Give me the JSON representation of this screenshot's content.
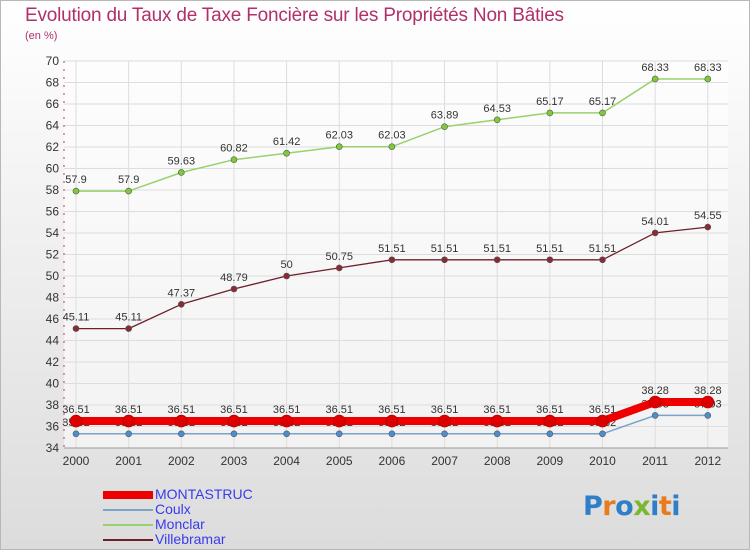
{
  "title": "Evolution du Taux de Taxe Foncière sur les Propriétés Non Bâties",
  "subtitle": "(en %)",
  "logo": {
    "chars": [
      "P",
      "r",
      "o",
      "x",
      "i",
      "t",
      "i"
    ],
    "colors": [
      "#2f7fc8",
      "#e87b1c",
      "#2f7fc8",
      "#7cb82f",
      "#2f7fc8",
      "#e87b1c",
      "#2f7fc8"
    ]
  },
  "chart_data": {
    "type": "line",
    "title": "Evolution du Taux de Taxe Foncière sur les Propriétés Non Bâties",
    "ylabel": "(en %)",
    "xlabel": "",
    "ylim": [
      34,
      70
    ],
    "yticks": [
      34,
      36,
      38,
      40,
      42,
      44,
      46,
      48,
      50,
      52,
      54,
      56,
      58,
      60,
      62,
      64,
      66,
      68,
      70
    ],
    "categories": [
      "2000",
      "2001",
      "2002",
      "2003",
      "2004",
      "2005",
      "2006",
      "2007",
      "2008",
      "2009",
      "2010",
      "2011",
      "2012"
    ],
    "legend_position": "bottom-left",
    "series": [
      {
        "name": "Villebramar",
        "color": "#6e1f2a",
        "markerFill": "#8a2a35",
        "width": 1.3,
        "values": [
          45.11,
          45.11,
          47.37,
          48.79,
          50,
          50.75,
          51.51,
          51.51,
          51.51,
          51.51,
          51.51,
          54.01,
          54.55
        ],
        "labels": [
          "45.11",
          "45.11",
          "47.37",
          "48.79",
          "50",
          "50.75",
          "51.51",
          "51.51",
          "51.51",
          "51.51",
          "51.51",
          "54.01",
          "54.55"
        ]
      },
      {
        "name": "Monclar",
        "color": "#99d16d",
        "markerFill": "#7ecb3a",
        "width": 1.5,
        "values": [
          57.9,
          57.9,
          59.63,
          60.82,
          61.42,
          62.03,
          62.03,
          63.89,
          64.53,
          65.17,
          65.17,
          68.33,
          68.33
        ],
        "labels": [
          "57.9",
          "57.9",
          "59.63",
          "60.82",
          "61.42",
          "62.03",
          "62.03",
          "63.89",
          "64.53",
          "65.17",
          "65.17",
          "68.33",
          "68.33"
        ]
      },
      {
        "name": "Coulx",
        "color": "#7aa3c7",
        "markerFill": "#4a8ed0",
        "width": 1.5,
        "values": [
          35.32,
          35.32,
          35.32,
          35.32,
          35.32,
          35.32,
          35.32,
          35.32,
          35.32,
          35.32,
          35.32,
          37.03,
          37.03
        ],
        "labels": [
          "35.32",
          "35.32",
          "35.32",
          "35.32",
          "35.32",
          "35.32",
          "35.32",
          "35.32",
          "35.32",
          "35.32",
          "35.32",
          "37.03",
          "37.03"
        ]
      },
      {
        "name": "MONTASTRUC",
        "color": "#ee0000",
        "markerFill": "#dd0000",
        "width": 8,
        "values": [
          36.51,
          36.51,
          36.51,
          36.51,
          36.51,
          36.51,
          36.51,
          36.51,
          36.51,
          36.51,
          36.51,
          38.28,
          38.28
        ],
        "labels": [
          "36.51",
          "36.51",
          "36.51",
          "36.51",
          "36.51",
          "36.51",
          "36.51",
          "36.51",
          "36.51",
          "36.51",
          "36.51",
          "38.28",
          "38.28"
        ]
      }
    ],
    "legend": [
      {
        "name": "MONTASTRUC",
        "color": "#ee0000",
        "textColor": "#3a3aee",
        "thick": true
      },
      {
        "name": "Coulx",
        "color": "#7aa3c7",
        "textColor": "#3a3aee",
        "thick": false
      },
      {
        "name": "Monclar",
        "color": "#99d16d",
        "textColor": "#3a3aee",
        "thick": false
      },
      {
        "name": "Villebramar",
        "color": "#6e1f2a",
        "textColor": "#3a3aee",
        "thick": false
      }
    ]
  }
}
